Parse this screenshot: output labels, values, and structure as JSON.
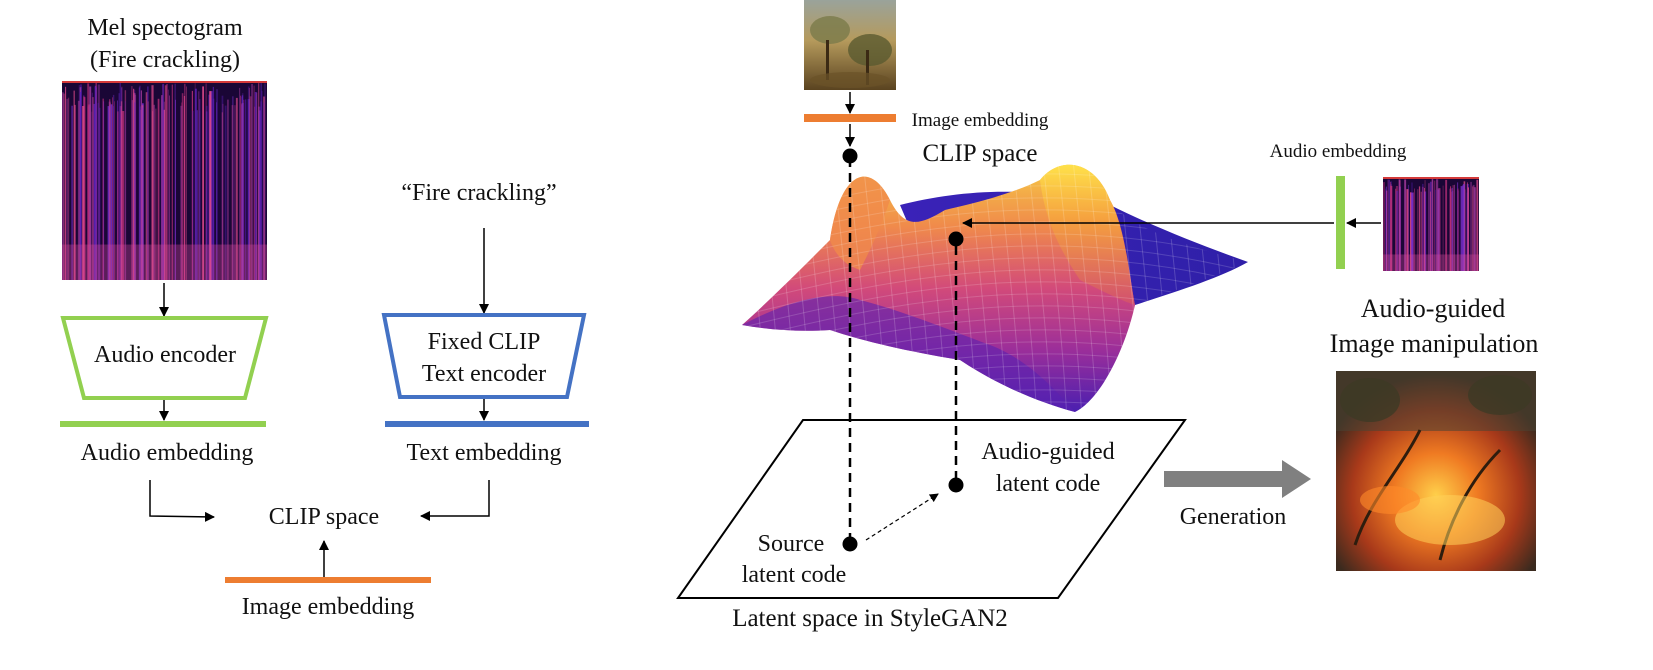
{
  "left": {
    "mel_title_line1": "Mel spectogram",
    "mel_title_line2": "(Fire crackling)",
    "text_prompt": "“Fire crackling”",
    "audio_encoder_label": "Audio encoder",
    "text_encoder_line1": "Fixed CLIP",
    "text_encoder_line2": "Text encoder",
    "audio_embedding_label": "Audio embedding",
    "text_embedding_label": "Text embedding",
    "clip_space_label": "CLIP space",
    "image_embedding_label": "Image embedding"
  },
  "right": {
    "image_embedding_label": "Image embedding",
    "clip_space_label": "CLIP space",
    "audio_embedding_label": "Audio embedding",
    "result_title_line1": "Audio-guided",
    "result_title_line2": "Image manipulation",
    "audio_guided_line1": "Audio-guided",
    "audio_guided_line2": "latent code",
    "source_line1": "Source",
    "source_line2": "latent code",
    "generation_label": "Generation",
    "latent_space_label": "Latent space in StyleGAN2"
  },
  "colors": {
    "audio_green": "#92d050",
    "text_blue": "#4472c4",
    "image_orange": "#ed7d31",
    "arrow_gray": "#808080"
  }
}
